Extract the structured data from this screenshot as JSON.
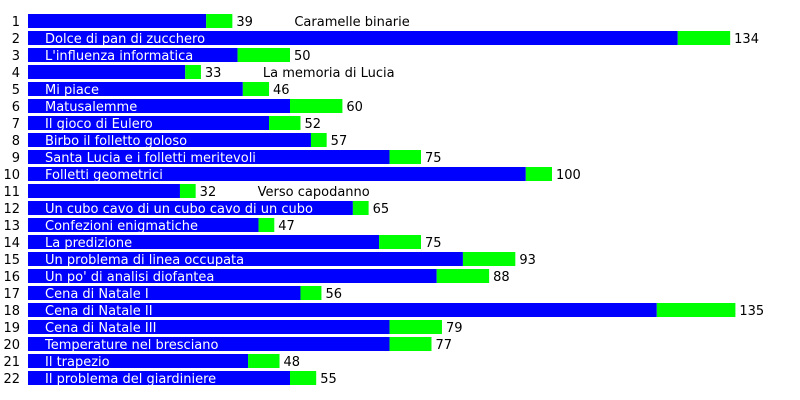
{
  "chart_data": {
    "type": "bar",
    "orientation": "horizontal",
    "stacked": true,
    "colors": {
      "base": "#0000ff",
      "extra": "#00ff00",
      "label_inside": "#ffffff",
      "label_outside": "#000000"
    },
    "rows": [
      {
        "rank": "1",
        "title": "Caramelle binarie",
        "total": 39,
        "base": 34,
        "extra": 5
      },
      {
        "rank": "2",
        "title": "Dolce di pan di zucchero",
        "total": 134,
        "base": 124,
        "extra": 10
      },
      {
        "rank": "3",
        "title": "L'influenza informatica",
        "total": 50,
        "base": 40,
        "extra": 10
      },
      {
        "rank": "4",
        "title": "La memoria di Lucia",
        "total": 33,
        "base": 30,
        "extra": 3
      },
      {
        "rank": "5",
        "title": "Mi piace",
        "total": 46,
        "base": 41,
        "extra": 5
      },
      {
        "rank": "6",
        "title": "Matusalemme",
        "total": 60,
        "base": 50,
        "extra": 10
      },
      {
        "rank": "7",
        "title": "Il gioco di Eulero",
        "total": 52,
        "base": 46,
        "extra": 6
      },
      {
        "rank": "8",
        "title": "Birbo il folletto goloso",
        "total": 57,
        "base": 54,
        "extra": 3
      },
      {
        "rank": "9",
        "title": "Santa Lucia e i folletti meritevoli",
        "total": 75,
        "base": 69,
        "extra": 6
      },
      {
        "rank": "10",
        "title": "Folletti geometrici",
        "total": 100,
        "base": 95,
        "extra": 5
      },
      {
        "rank": "11",
        "title": "Verso capodanno",
        "total": 32,
        "base": 29,
        "extra": 3
      },
      {
        "rank": "12",
        "title": "Un cubo cavo di un cubo cavo di un cubo",
        "total": 65,
        "base": 62,
        "extra": 3
      },
      {
        "rank": "13",
        "title": "Confezioni enigmatiche",
        "total": 47,
        "base": 44,
        "extra": 3
      },
      {
        "rank": "14",
        "title": "La predizione",
        "total": 75,
        "base": 67,
        "extra": 8
      },
      {
        "rank": "15",
        "title": "Un problema di linea occupata",
        "total": 93,
        "base": 83,
        "extra": 10
      },
      {
        "rank": "16",
        "title": "Un po' di analisi diofantea",
        "total": 88,
        "base": 78,
        "extra": 10
      },
      {
        "rank": "17",
        "title": "Cena di Natale I",
        "total": 56,
        "base": 52,
        "extra": 4
      },
      {
        "rank": "18",
        "title": "Cena di Natale II",
        "total": 135,
        "base": 120,
        "extra": 15
      },
      {
        "rank": "19",
        "title": "Cena di Natale III",
        "total": 79,
        "base": 69,
        "extra": 10
      },
      {
        "rank": "20",
        "title": "Temperature nel bresciano",
        "total": 77,
        "base": 69,
        "extra": 8
      },
      {
        "rank": "21",
        "title": "Il trapezio",
        "total": 48,
        "base": 42,
        "extra": 6
      },
      {
        "rank": "22",
        "title": "Il problema del giardiniere",
        "total": 55,
        "base": 50,
        "extra": 5
      }
    ],
    "xlim": [
      0,
      135
    ],
    "grid": false,
    "legend": "none"
  }
}
